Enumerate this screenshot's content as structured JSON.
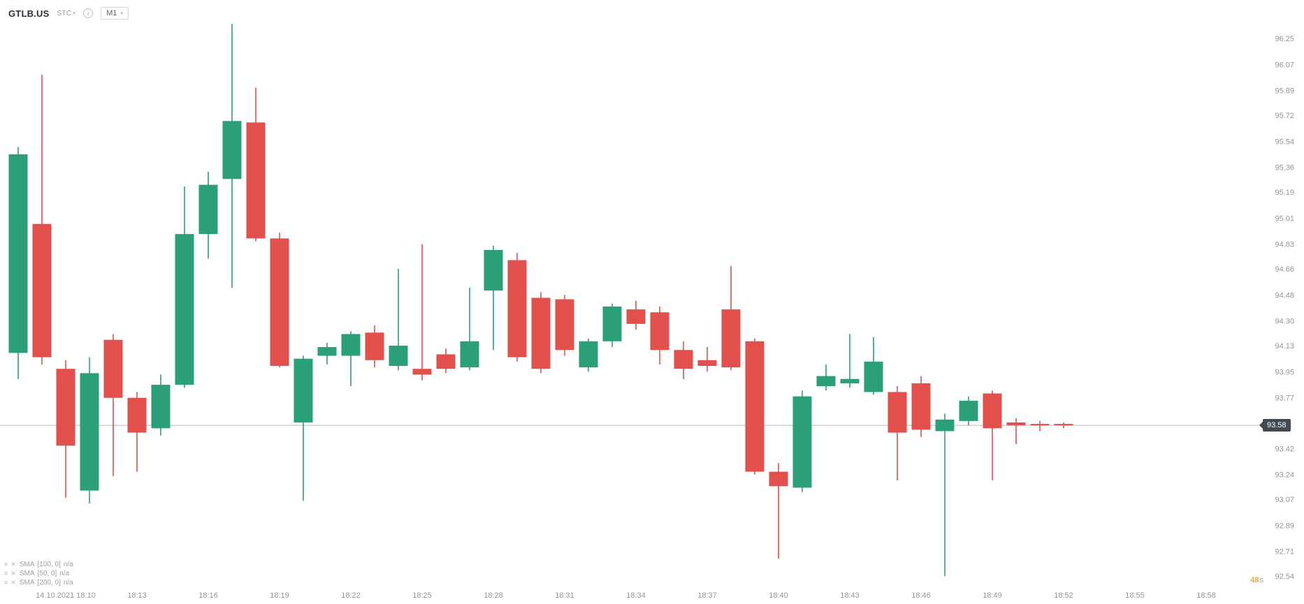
{
  "header": {
    "symbol": "GTLB.US",
    "market_badge": "STC",
    "timeframe": "M1"
  },
  "icons": {
    "chevron_down": "▾",
    "info": "i",
    "menu": "≡",
    "close": "✕"
  },
  "countdown": {
    "value": "48",
    "unit": "s"
  },
  "indicators": {
    "items": [
      {
        "name": "SMA",
        "params": "[100, 0]",
        "value": "n/a"
      },
      {
        "name": "SMA",
        "params": "[50, 0]",
        "value": "n/a"
      },
      {
        "name": "SMA",
        "params": "[200, 0]",
        "value": "n/a"
      }
    ]
  },
  "chart_data": {
    "type": "candlestick",
    "symbol": "GTLB.US",
    "interval": "M1",
    "date": "14.10.2021",
    "current_price": 93.58,
    "current_price_label": "93.58",
    "price_axis": {
      "min": 92.54,
      "max": 96.25,
      "tick_labels": [
        "96.25",
        "96.07",
        "95.89",
        "95.72",
        "95.54",
        "95.36",
        "95.19",
        "95.01",
        "94.83",
        "94.66",
        "94.48",
        "94.30",
        "94.13",
        "93.95",
        "93.77",
        "93.42",
        "93.24",
        "93.07",
        "92.89",
        "92.71",
        "92.54"
      ]
    },
    "time_ticks": [
      {
        "time": "18:10",
        "label": "14.10.2021 18:10"
      },
      {
        "time": "18:13",
        "label": "18:13"
      },
      {
        "time": "18:16",
        "label": "18:16"
      },
      {
        "time": "18:19",
        "label": "18:19"
      },
      {
        "time": "18:22",
        "label": "18:22"
      },
      {
        "time": "18:25",
        "label": "18:25"
      },
      {
        "time": "18:28",
        "label": "18:28"
      },
      {
        "time": "18:31",
        "label": "18:31"
      },
      {
        "time": "18:34",
        "label": "18:34"
      },
      {
        "time": "18:37",
        "label": "18:37"
      },
      {
        "time": "18:40",
        "label": "18:40"
      },
      {
        "time": "18:43",
        "label": "18:43"
      },
      {
        "time": "18:46",
        "label": "18:46"
      },
      {
        "time": "18:49",
        "label": "18:49"
      },
      {
        "time": "18:52",
        "label": "18:52"
      },
      {
        "time": "18:55",
        "label": "18:55"
      },
      {
        "time": "18:58",
        "label": "18:58"
      }
    ],
    "candles": [
      {
        "t": "18:08",
        "o": 94.08,
        "h": 95.5,
        "l": 93.9,
        "c": 95.45
      },
      {
        "t": "18:09",
        "o": 94.97,
        "h": 96.0,
        "l": 94.0,
        "c": 94.05
      },
      {
        "t": "18:10",
        "o": 93.97,
        "h": 94.03,
        "l": 93.08,
        "c": 93.44
      },
      {
        "t": "18:11",
        "o": 93.13,
        "h": 94.05,
        "l": 93.04,
        "c": 93.94
      },
      {
        "t": "18:12",
        "o": 94.17,
        "h": 94.21,
        "l": 93.23,
        "c": 93.77
      },
      {
        "t": "18:13",
        "o": 93.77,
        "h": 93.81,
        "l": 93.26,
        "c": 93.53
      },
      {
        "t": "18:14",
        "o": 93.56,
        "h": 93.93,
        "l": 93.51,
        "c": 93.86
      },
      {
        "t": "18:15",
        "o": 93.86,
        "h": 95.23,
        "l": 93.84,
        "c": 94.9
      },
      {
        "t": "18:16",
        "o": 94.9,
        "h": 95.33,
        "l": 94.73,
        "c": 95.24
      },
      {
        "t": "18:17",
        "o": 95.28,
        "h": 96.35,
        "l": 94.53,
        "c": 95.68
      },
      {
        "t": "18:18",
        "o": 95.67,
        "h": 95.91,
        "l": 94.85,
        "c": 94.87
      },
      {
        "t": "18:19",
        "o": 94.87,
        "h": 94.91,
        "l": 93.98,
        "c": 93.99
      },
      {
        "t": "18:20",
        "o": 93.6,
        "h": 94.06,
        "l": 93.06,
        "c": 94.04
      },
      {
        "t": "18:21",
        "o": 94.06,
        "h": 94.15,
        "l": 94.0,
        "c": 94.12
      },
      {
        "t": "18:22",
        "o": 94.06,
        "h": 94.23,
        "l": 93.85,
        "c": 94.21
      },
      {
        "t": "18:23",
        "o": 94.22,
        "h": 94.27,
        "l": 93.98,
        "c": 94.03
      },
      {
        "t": "18:24",
        "o": 93.99,
        "h": 94.66,
        "l": 93.96,
        "c": 94.13
      },
      {
        "t": "18:25",
        "o": 93.97,
        "h": 94.83,
        "l": 93.89,
        "c": 93.93
      },
      {
        "t": "18:26",
        "o": 94.07,
        "h": 94.11,
        "l": 93.94,
        "c": 93.97
      },
      {
        "t": "18:27",
        "o": 93.98,
        "h": 94.53,
        "l": 93.96,
        "c": 94.16
      },
      {
        "t": "18:28",
        "o": 94.51,
        "h": 94.82,
        "l": 94.1,
        "c": 94.79
      },
      {
        "t": "18:29",
        "o": 94.72,
        "h": 94.77,
        "l": 94.02,
        "c": 94.05
      },
      {
        "t": "18:30",
        "o": 94.46,
        "h": 94.5,
        "l": 93.94,
        "c": 93.97
      },
      {
        "t": "18:31",
        "o": 94.45,
        "h": 94.48,
        "l": 94.06,
        "c": 94.1
      },
      {
        "t": "18:32",
        "o": 93.98,
        "h": 94.18,
        "l": 93.95,
        "c": 94.16
      },
      {
        "t": "18:33",
        "o": 94.16,
        "h": 94.42,
        "l": 94.12,
        "c": 94.4
      },
      {
        "t": "18:34",
        "o": 94.38,
        "h": 94.44,
        "l": 94.24,
        "c": 94.28
      },
      {
        "t": "18:35",
        "o": 94.36,
        "h": 94.4,
        "l": 94.0,
        "c": 94.1
      },
      {
        "t": "18:36",
        "o": 94.1,
        "h": 94.16,
        "l": 93.9,
        "c": 93.97
      },
      {
        "t": "18:37",
        "o": 94.03,
        "h": 94.12,
        "l": 93.95,
        "c": 93.99
      },
      {
        "t": "18:38",
        "o": 94.38,
        "h": 94.68,
        "l": 93.96,
        "c": 93.98
      },
      {
        "t": "18:39",
        "o": 94.16,
        "h": 94.18,
        "l": 93.24,
        "c": 93.26
      },
      {
        "t": "18:40",
        "o": 93.26,
        "h": 93.32,
        "l": 92.66,
        "c": 93.16
      },
      {
        "t": "18:41",
        "o": 93.15,
        "h": 93.82,
        "l": 93.12,
        "c": 93.78
      },
      {
        "t": "18:42",
        "o": 93.85,
        "h": 94.0,
        "l": 93.82,
        "c": 93.92
      },
      {
        "t": "18:43",
        "o": 93.87,
        "h": 94.21,
        "l": 93.84,
        "c": 93.9
      },
      {
        "t": "18:44",
        "o": 93.81,
        "h": 94.19,
        "l": 93.79,
        "c": 94.02
      },
      {
        "t": "18:45",
        "o": 93.81,
        "h": 93.85,
        "l": 93.2,
        "c": 93.53
      },
      {
        "t": "18:46",
        "o": 93.87,
        "h": 93.92,
        "l": 93.5,
        "c": 93.55
      },
      {
        "t": "18:47",
        "o": 93.54,
        "h": 93.66,
        "l": 92.54,
        "c": 93.62
      },
      {
        "t": "18:48",
        "o": 93.61,
        "h": 93.78,
        "l": 93.58,
        "c": 93.75
      },
      {
        "t": "18:49",
        "o": 93.8,
        "h": 93.82,
        "l": 93.2,
        "c": 93.56
      },
      {
        "t": "18:50",
        "o": 93.6,
        "h": 93.63,
        "l": 93.45,
        "c": 93.58
      },
      {
        "t": "18:51",
        "o": 93.59,
        "h": 93.61,
        "l": 93.54,
        "c": 93.58
      },
      {
        "t": "18:52",
        "o": 93.59,
        "h": 93.6,
        "l": 93.56,
        "c": 93.58
      }
    ],
    "colors": {
      "up": "#2b9f77",
      "down": "#e2504d",
      "axis_text": "#8f969e",
      "price_line": "#b4b9bf",
      "price_tag_bg": "#434a52",
      "price_tag_text": "#ffffff",
      "countdown": "#f0a33c"
    }
  }
}
